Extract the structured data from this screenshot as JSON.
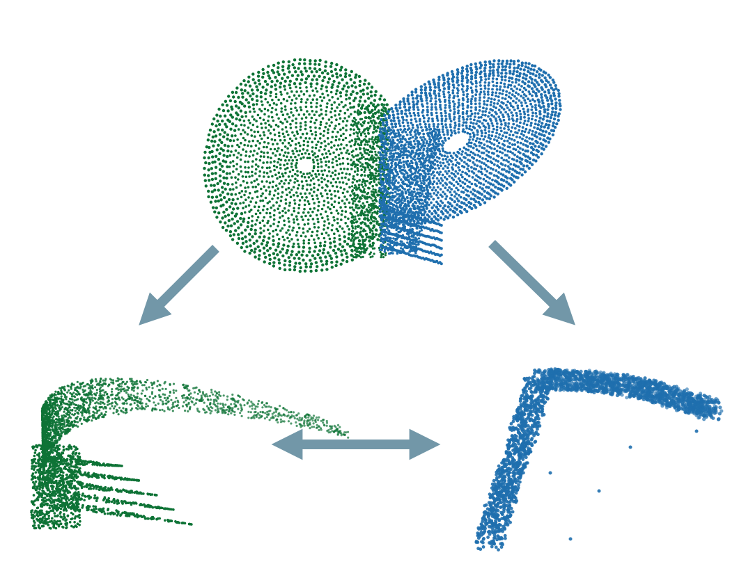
{
  "figure": {
    "colors": {
      "green": "#0e7336",
      "blue": "#1f6fae",
      "arrow": "#7297a8",
      "background": "#ffffff"
    },
    "panels": [
      {
        "id": "attractor",
        "description_name": "lorenz-attractor-two-lobes"
      },
      {
        "id": "embedding-green"
      },
      {
        "id": "embedding-blue"
      }
    ],
    "arrows": [
      {
        "id": "arrow-to-left",
        "direction": "down-left"
      },
      {
        "id": "arrow-to-right",
        "direction": "down-right"
      },
      {
        "id": "arrow-bidirectional",
        "direction": "left-right"
      }
    ]
  }
}
